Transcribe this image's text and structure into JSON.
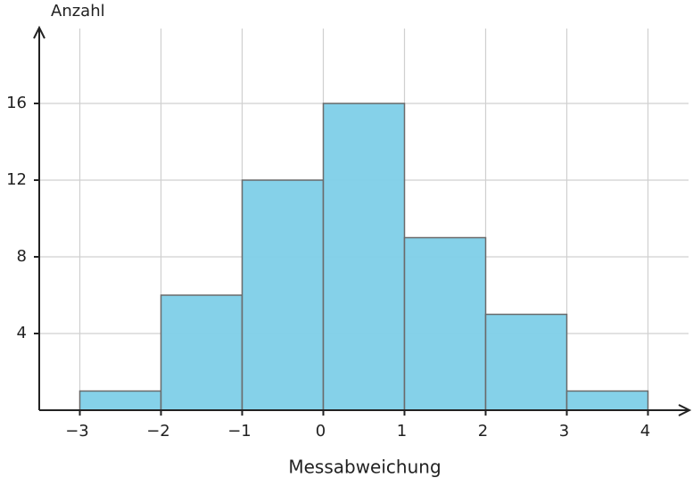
{
  "chart_data": {
    "type": "histogram",
    "x_label": "Messabweichung",
    "y_label": "Anzahl",
    "bins": [
      -3,
      -2,
      -1,
      0,
      1,
      2,
      3,
      4
    ],
    "values": [
      1,
      6,
      12,
      16,
      9,
      5,
      1
    ],
    "color": "#7ecfe8",
    "xlim": [
      -3.5,
      4.5
    ],
    "ylim": [
      0,
      20
    ],
    "xticks": [
      {
        "value": -3,
        "label": "−3"
      },
      {
        "value": -2,
        "label": "−2"
      },
      {
        "value": -1,
        "label": "−1"
      },
      0,
      1,
      2,
      3,
      4
    ],
    "yticks": [
      4,
      8,
      12,
      16
    ],
    "grid": true
  }
}
